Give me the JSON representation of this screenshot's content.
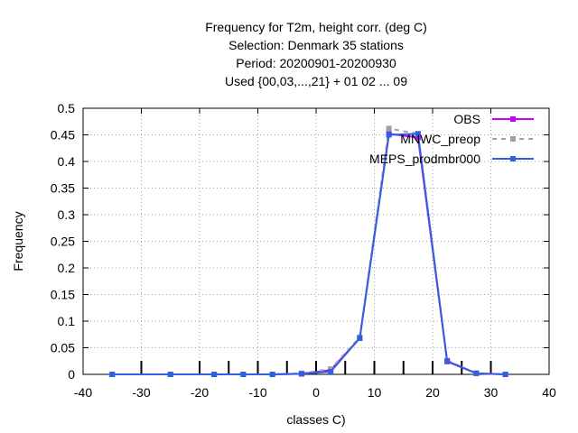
{
  "chart_data": {
    "type": "line",
    "title_lines": [
      "Frequency  for T2m, height corr. (deg C)",
      "Selection: Denmark     35 stations",
      "Period: 20200901-20200930",
      "Used {00,03,...,21} + 01 02 ... 09"
    ],
    "xlabel": "classes C)",
    "ylabel": "Frequency",
    "xlim": [
      -40,
      40
    ],
    "ylim": [
      0,
      0.5
    ],
    "xticks": [
      -40,
      -30,
      -20,
      -10,
      0,
      10,
      20,
      30,
      40
    ],
    "yticks": [
      0,
      0.05,
      0.1,
      0.15,
      0.2,
      0.25,
      0.3,
      0.35,
      0.4,
      0.45,
      0.5
    ],
    "x_tick_labels": [
      "-40",
      "-30",
      "-20",
      "-10",
      "0",
      "10",
      "20",
      "30",
      "40"
    ],
    "y_tick_labels": [
      "0",
      "0.05",
      "0.1",
      "0.15",
      "0.2",
      "0.25",
      "0.3",
      "0.35",
      "0.4",
      "0.45",
      "0.5"
    ],
    "grid": true,
    "legend_position": "top-right",
    "class_boundaries": [
      -30,
      -20,
      -15,
      -10,
      -5,
      0,
      5,
      10,
      15,
      20,
      25,
      30
    ],
    "x": [
      -35,
      -25,
      -17.5,
      -12.5,
      -7.5,
      -2.5,
      2.5,
      7.5,
      12.5,
      17.5,
      22.5,
      27.5,
      32.5
    ],
    "series": [
      {
        "name": "OBS",
        "color": "#cc00ff",
        "dashed": false,
        "values": [
          0,
          0,
          0,
          0,
          0,
          0.001,
          0.008,
          0.068,
          0.452,
          0.445,
          0.024,
          0.002,
          0
        ]
      },
      {
        "name": "MNWC_preop",
        "color": "#a0a0a0",
        "dashed": true,
        "values": [
          0,
          0,
          0,
          0,
          0,
          0.002,
          0.01,
          0.07,
          0.462,
          0.452,
          0.026,
          0.002,
          0
        ]
      },
      {
        "name": "MEPS_prodmbr000",
        "color": "#3060e0",
        "dashed": false,
        "values": [
          0,
          0,
          0,
          0,
          0,
          0.001,
          0.005,
          0.068,
          0.45,
          0.452,
          0.025,
          0.002,
          0
        ]
      }
    ]
  }
}
